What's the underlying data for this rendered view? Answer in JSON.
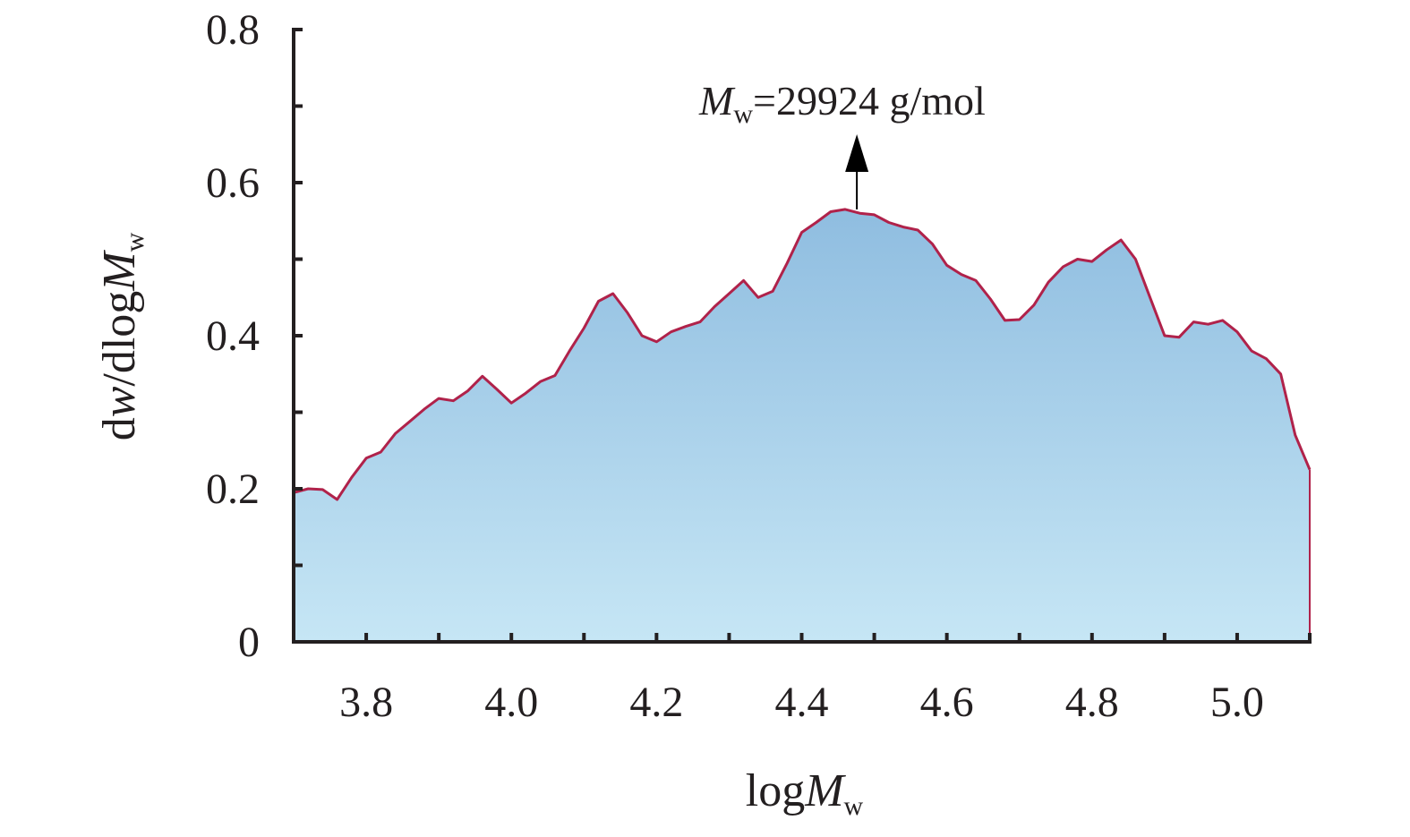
{
  "chart_data": {
    "type": "area",
    "title": "",
    "xlabel": {
      "base": "log",
      "var": "M",
      "sub": "w"
    },
    "ylabel": {
      "d": "d",
      "w": "w",
      "mid": "/dlog",
      "var": "M",
      "sub": "w"
    },
    "xlim": [
      3.7,
      5.1
    ],
    "ylim": [
      0,
      0.8
    ],
    "x_ticks": [
      3.8,
      4.0,
      4.2,
      4.4,
      4.6,
      4.8,
      5.0
    ],
    "x_tick_labels": [
      "3.8",
      "4.0",
      "4.2",
      "4.4",
      "4.6",
      "4.8",
      "5.0"
    ],
    "y_ticks": [
      0,
      0.2,
      0.4,
      0.6,
      0.8
    ],
    "y_tick_labels": [
      "0",
      "0.2",
      "0.4",
      "0.6",
      "0.8"
    ],
    "grid": false,
    "colors": {
      "line": "#b0224a",
      "fill_top": "#8fbde0",
      "fill_bottom": "#c6e6f5",
      "axis": "#231f20"
    },
    "annotation": {
      "var": "M",
      "sub": "w",
      "text": "=29924 g/mol",
      "x": 4.476,
      "y": 0.565
    },
    "x": [
      3.7,
      3.72,
      3.74,
      3.76,
      3.78,
      3.8,
      3.82,
      3.84,
      3.86,
      3.88,
      3.9,
      3.92,
      3.94,
      3.96,
      3.98,
      4.0,
      4.02,
      4.04,
      4.06,
      4.08,
      4.1,
      4.12,
      4.14,
      4.16,
      4.18,
      4.2,
      4.22,
      4.24,
      4.26,
      4.28,
      4.3,
      4.32,
      4.34,
      4.36,
      4.38,
      4.4,
      4.42,
      4.44,
      4.46,
      4.48,
      4.5,
      4.52,
      4.54,
      4.56,
      4.58,
      4.6,
      4.62,
      4.64,
      4.66,
      4.68,
      4.7,
      4.72,
      4.74,
      4.76,
      4.78,
      4.8,
      4.82,
      4.84,
      4.86,
      4.88,
      4.9,
      4.92,
      4.94,
      4.96,
      4.98,
      5.0,
      5.02,
      5.04,
      5.06,
      5.08,
      5.1
    ],
    "y": [
      0.195,
      0.2,
      0.199,
      0.186,
      0.215,
      0.24,
      0.248,
      0.272,
      0.288,
      0.304,
      0.318,
      0.315,
      0.328,
      0.347,
      0.33,
      0.312,
      0.325,
      0.34,
      0.348,
      0.38,
      0.41,
      0.445,
      0.455,
      0.43,
      0.4,
      0.392,
      0.405,
      0.412,
      0.418,
      0.438,
      0.455,
      0.472,
      0.45,
      0.458,
      0.495,
      0.535,
      0.548,
      0.562,
      0.565,
      0.56,
      0.558,
      0.548,
      0.542,
      0.538,
      0.52,
      0.492,
      0.48,
      0.472,
      0.448,
      0.42,
      0.421,
      0.44,
      0.47,
      0.49,
      0.5,
      0.497,
      0.512,
      0.525,
      0.5,
      0.45,
      0.4,
      0.398,
      0.418,
      0.415,
      0.42,
      0.405,
      0.38,
      0.37,
      0.35,
      0.27,
      0.225
    ]
  }
}
